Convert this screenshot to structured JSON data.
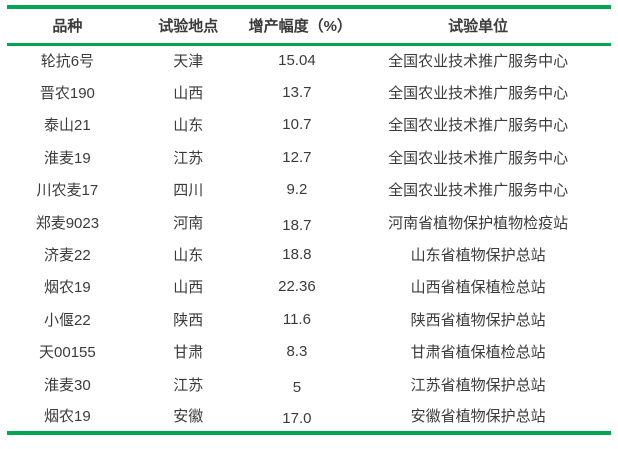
{
  "colors": {
    "accent_green": "#00a551",
    "text": "#3b3b3b",
    "background": "#ffffff"
  },
  "table": {
    "headers": [
      "品种",
      "试验地点",
      "增产幅度（%）",
      "试验单位"
    ],
    "rows": [
      [
        "轮抗6号",
        "天津",
        "15.04",
        "全国农业技术推广服务中心"
      ],
      [
        "晋农190",
        "山西",
        "13.7",
        "全国农业技术推广服务中心"
      ],
      [
        "泰山21",
        "山东",
        "10.7",
        "全国农业技术推广服务中心"
      ],
      [
        "淮麦19",
        "江苏",
        "12.7",
        "全国农业技术推广服务中心"
      ],
      [
        "川农麦17",
        "四川",
        "9.2",
        "全国农业技术推广服务中心"
      ],
      [
        "郑麦9023",
        "河南",
        "18.7",
        "河南省植物保护植物检疫站"
      ],
      [
        "济麦22",
        "山东",
        "18.8",
        "山东省植物保护总站"
      ],
      [
        "烟农19",
        "山西",
        "22.36",
        "山西省植保植检总站"
      ],
      [
        "小偃22",
        "陕西",
        "11.6",
        "陕西省植物保护总站"
      ],
      [
        "天00155",
        "甘肃",
        "8.3",
        "甘肃省植保植检总站"
      ],
      [
        "淮麦30",
        "江苏",
        "5",
        "江苏省植物保护总站"
      ],
      [
        "烟农19",
        "安徽",
        "17.0",
        "安徽省植物保护总站"
      ]
    ]
  }
}
